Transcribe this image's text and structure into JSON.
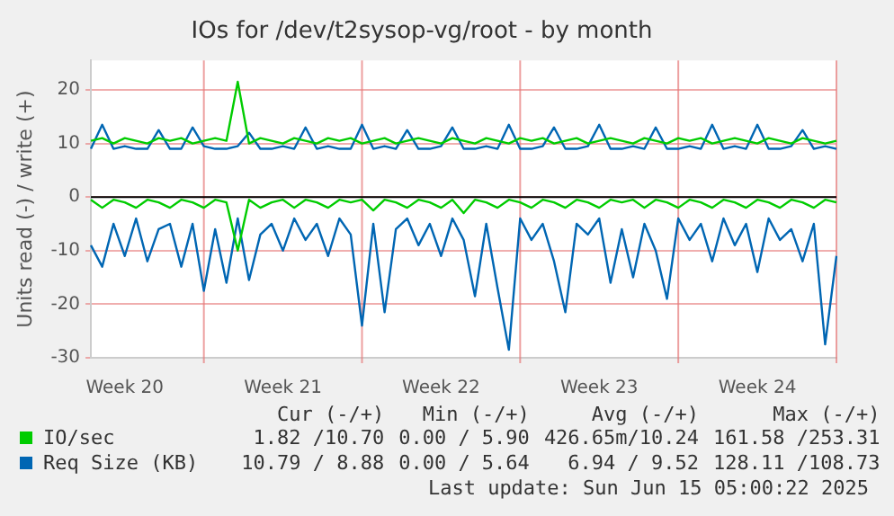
{
  "chart_data": {
    "type": "line",
    "title": "IOs for /dev/t2sysop-vg/root - by month",
    "ylabel": "Units read (-) / write (+)",
    "categories": [
      null,
      null,
      null,
      "Week 20",
      null,
      null,
      null,
      null,
      null,
      null,
      null,
      null,
      null,
      null,
      null,
      null,
      null,
      "Week 21",
      null,
      null,
      null,
      null,
      null,
      null,
      null,
      null,
      null,
      null,
      null,
      null,
      null,
      "Week 22",
      null,
      null,
      null,
      null,
      null,
      null,
      null,
      null,
      null,
      null,
      null,
      null,
      null,
      "Week 23",
      null,
      null,
      null,
      null,
      null,
      null,
      null,
      null,
      null,
      null,
      null,
      null,
      null,
      "Week 24",
      null,
      null,
      null,
      null,
      null,
      null,
      null
    ],
    "ylim": [
      -30,
      25.5
    ],
    "yticks": [
      -30,
      -20,
      -10,
      0,
      10,
      20
    ],
    "grid": true,
    "legend": "bottom",
    "ref_lines": [
      {
        "axis": "y",
        "value": 0,
        "color": "#000000"
      }
    ],
    "series": [
      {
        "name": "IO/sec",
        "color": "#00cc00",
        "values": [
          10.5,
          11,
          10,
          11,
          10.5,
          10,
          11,
          10.5,
          11,
          10,
          10.5,
          11,
          10.5,
          21.5,
          10,
          11,
          10.5,
          10,
          11,
          10.5,
          10,
          11,
          10.5,
          11,
          10,
          10.5,
          11,
          10,
          10.5,
          11,
          10.5,
          10,
          11,
          10.5,
          10,
          11,
          10.5,
          10,
          11,
          10.5,
          11,
          10,
          10.5,
          11,
          10,
          10.5,
          11,
          10.5,
          10,
          11,
          10.5,
          10,
          11,
          10.5,
          11,
          10,
          10.5,
          11,
          10.5,
          10,
          11,
          10.5,
          10,
          11,
          10.5,
          10,
          10.5
        ]
      },
      {
        "color": "#00cc00",
        "values": [
          -0.5,
          -2,
          -0.5,
          -1,
          -2,
          -0.5,
          -1,
          -2,
          -0.5,
          -1,
          -2,
          -0.5,
          -1,
          -10,
          -0.5,
          -2,
          -1,
          -0.5,
          -2,
          -0.5,
          -1,
          -2,
          -0.5,
          -1,
          -0.5,
          -2.5,
          -0.5,
          -1,
          -2,
          -0.5,
          -1,
          -2,
          -0.5,
          -3,
          -0.5,
          -1,
          -2,
          -0.5,
          -1,
          -2,
          -0.5,
          -1,
          -2,
          -0.5,
          -1,
          -2,
          -0.5,
          -1,
          -0.5,
          -2,
          -0.5,
          -1,
          -2,
          -0.5,
          -1,
          -2,
          -0.5,
          -1,
          -2,
          -0.5,
          -1,
          -2,
          -0.5,
          -1,
          -2,
          -0.5,
          -1
        ]
      },
      {
        "name": "Req Size (KB)",
        "color": "#0066b3",
        "values": [
          9,
          13.5,
          9,
          9.5,
          9,
          9,
          12.5,
          9,
          9,
          13,
          9.5,
          9,
          9,
          9.5,
          12,
          9,
          9,
          9.5,
          9,
          13,
          9,
          9.5,
          9,
          9,
          13.5,
          9,
          9.5,
          9,
          12.5,
          9,
          9,
          9.5,
          13,
          9,
          9,
          9.5,
          9,
          13.5,
          9,
          9,
          9.5,
          13,
          9,
          9,
          9.5,
          13.5,
          9,
          9,
          9.5,
          9,
          13,
          9,
          9,
          9.5,
          9,
          13.5,
          9,
          9.5,
          9,
          13.5,
          9,
          9,
          9.5,
          12.5,
          9,
          9.5,
          9
        ]
      },
      {
        "color": "#0066b3",
        "values": [
          -9,
          -13,
          -5,
          -11,
          -4,
          -12,
          -6,
          -5,
          -13,
          -5,
          -17.5,
          -6,
          -16,
          -4,
          -15.5,
          -7,
          -5,
          -10,
          -4,
          -8,
          -5,
          -11,
          -4,
          -7,
          -24,
          -5,
          -21.5,
          -6,
          -4,
          -9,
          -5,
          -11,
          -4,
          -8,
          -18.5,
          -5,
          -17,
          -28.5,
          -4,
          -8,
          -5,
          -12,
          -21.5,
          -5,
          -7,
          -4,
          -16,
          -6,
          -15,
          -5,
          -10,
          -19,
          -4,
          -8,
          -5,
          -12,
          -4,
          -9,
          -5,
          -14,
          -4,
          -8,
          -6,
          -12,
          -5,
          -27.5,
          -11
        ]
      }
    ],
    "annotations": [
      "Cur (-/+)",
      "Min (-/+)",
      "Avg (-/+)",
      "Max (-/+)",
      "1.82 /10.70",
      "0.00 / 5.90",
      "426.65m/10.24",
      "161.58 /253.31",
      "10.79 / 8.88",
      "0.00 / 5.64",
      "6.94 / 9.52",
      "128.11 /108.73",
      "Last update: Sun Jun 15 05:00:22 2025"
    ]
  }
}
